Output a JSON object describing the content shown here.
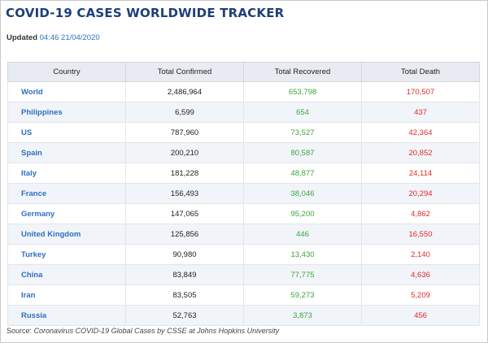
{
  "title": "COVID-19 CASES WORLDWIDE TRACKER",
  "updated": {
    "label": "Updated",
    "timestamp": "04:46 21/04/2020"
  },
  "table": {
    "headers": [
      "Country",
      "Total Confirmed",
      "Total Recovered",
      "Total Death"
    ],
    "rows": [
      {
        "country": "World",
        "confirmed": "2,486,964",
        "recovered": "653,798",
        "death": "170,507"
      },
      {
        "country": "Philippines",
        "confirmed": "6,599",
        "recovered": "654",
        "death": "437"
      },
      {
        "country": "US",
        "confirmed": "787,960",
        "recovered": "73,527",
        "death": "42,364"
      },
      {
        "country": "Spain",
        "confirmed": "200,210",
        "recovered": "80,587",
        "death": "20,852"
      },
      {
        "country": "Italy",
        "confirmed": "181,228",
        "recovered": "48,877",
        "death": "24,114"
      },
      {
        "country": "France",
        "confirmed": "156,493",
        "recovered": "38,046",
        "death": "20,294"
      },
      {
        "country": "Germany",
        "confirmed": "147,065",
        "recovered": "95,200",
        "death": "4,862"
      },
      {
        "country": "United Kingdom",
        "confirmed": "125,856",
        "recovered": "446",
        "death": "16,550"
      },
      {
        "country": "Turkey",
        "confirmed": "90,980",
        "recovered": "13,430",
        "death": "2,140"
      },
      {
        "country": "China",
        "confirmed": "83,849",
        "recovered": "77,775",
        "death": "4,636"
      },
      {
        "country": "Iran",
        "confirmed": "83,505",
        "recovered": "59,273",
        "death": "5,209"
      },
      {
        "country": "Russia",
        "confirmed": "52,763",
        "recovered": "3,873",
        "death": "456"
      }
    ]
  },
  "source": {
    "label": "Source:",
    "text": "Coronavirus COVID-19 Global Cases by CSSE at Johns Hopkins University"
  },
  "colors": {
    "title": "#1f3f79",
    "country": "#2f6fbf",
    "recovered": "#3ca53c",
    "death": "#e02a2a",
    "header_bg": "#e8ecf2",
    "row_alt": "#f1f4f9"
  }
}
